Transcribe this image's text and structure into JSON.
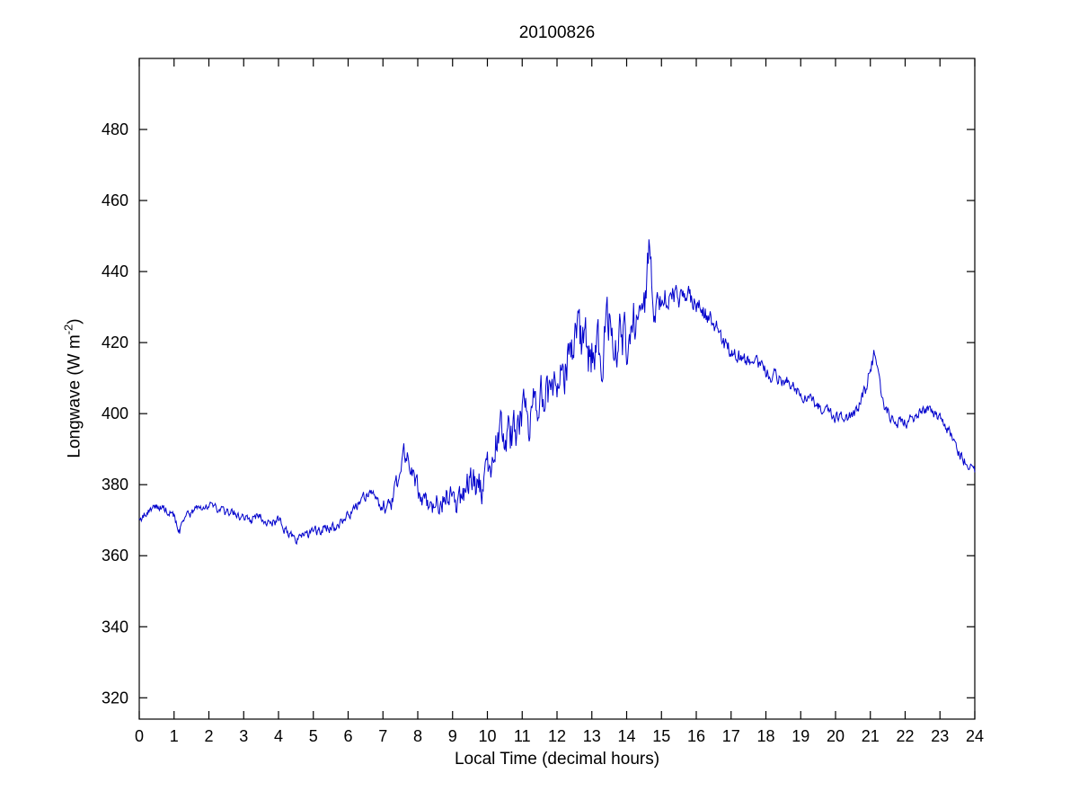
{
  "page": {
    "background": "#FFFFFF"
  },
  "chart_data": {
    "type": "line",
    "title": "20100826",
    "xlabel": "Local Time (decimal hours)",
    "ylabel": {
      "prefix": "Longwave (W m",
      "superscript": "-2",
      "suffix": ")"
    },
    "xlim": [
      0,
      24
    ],
    "ylim": [
      314,
      500
    ],
    "xticks": [
      0,
      1,
      2,
      3,
      4,
      5,
      6,
      7,
      8,
      9,
      10,
      11,
      12,
      13,
      14,
      15,
      16,
      17,
      18,
      19,
      20,
      21,
      22,
      23,
      24
    ],
    "yticks": [
      320,
      340,
      360,
      380,
      400,
      420,
      440,
      460,
      480
    ],
    "grid": false,
    "legend": "none",
    "line_color": "#0000CC",
    "axis_color": "#000000",
    "series": [
      {
        "name": "longwave",
        "noise_seed": 20100826,
        "sample_step_hours": 0.02,
        "keypoints": [
          [
            0,
            370
          ],
          [
            0.2,
            372
          ],
          [
            0.5,
            374
          ],
          [
            0.8,
            373
          ],
          [
            1.0,
            371
          ],
          [
            1.15,
            367
          ],
          [
            1.3,
            370
          ],
          [
            1.6,
            373
          ],
          [
            1.9,
            374
          ],
          [
            2.2,
            373
          ],
          [
            2.5,
            372
          ],
          [
            2.8,
            372
          ],
          [
            3.1,
            370
          ],
          [
            3.4,
            371
          ],
          [
            3.7,
            369
          ],
          [
            4.0,
            370
          ],
          [
            4.2,
            367
          ],
          [
            4.5,
            364
          ],
          [
            4.7,
            366
          ],
          [
            5.0,
            366
          ],
          [
            5.3,
            368
          ],
          [
            5.6,
            368
          ],
          [
            5.9,
            370
          ],
          [
            6.2,
            374
          ],
          [
            6.5,
            377
          ],
          [
            6.8,
            376
          ],
          [
            7.0,
            374
          ],
          [
            7.2,
            373
          ],
          [
            7.4,
            380
          ],
          [
            7.55,
            388
          ],
          [
            7.7,
            389
          ],
          [
            7.85,
            384
          ],
          [
            8.0,
            379
          ],
          [
            8.2,
            376
          ],
          [
            8.5,
            375
          ],
          [
            8.8,
            377
          ],
          [
            9.0,
            376
          ],
          [
            9.2,
            374
          ],
          [
            9.5,
            381
          ],
          [
            9.8,
            379
          ],
          [
            10.0,
            385
          ],
          [
            10.2,
            391
          ],
          [
            10.5,
            396
          ],
          [
            10.8,
            394
          ],
          [
            11.0,
            399
          ],
          [
            11.3,
            401
          ],
          [
            11.6,
            404
          ],
          [
            12.0,
            410
          ],
          [
            12.3,
            414
          ],
          [
            12.6,
            419
          ],
          [
            12.9,
            417
          ],
          [
            13.2,
            419
          ],
          [
            13.5,
            423
          ],
          [
            13.8,
            421
          ],
          [
            14.1,
            424
          ],
          [
            14.35,
            426
          ],
          [
            14.55,
            432
          ],
          [
            14.65,
            448
          ],
          [
            14.75,
            430
          ],
          [
            14.9,
            429
          ],
          [
            15.1,
            432
          ],
          [
            15.4,
            433
          ],
          [
            15.7,
            432
          ],
          [
            16.0,
            431
          ],
          [
            16.2,
            429
          ],
          [
            16.5,
            425
          ],
          [
            16.8,
            420
          ],
          [
            17.0,
            418
          ],
          [
            17.3,
            416
          ],
          [
            17.6,
            414
          ],
          [
            18.0,
            412
          ],
          [
            18.4,
            410
          ],
          [
            18.8,
            408
          ],
          [
            19.1,
            405
          ],
          [
            19.4,
            403
          ],
          [
            19.7,
            401
          ],
          [
            20.0,
            399
          ],
          [
            20.3,
            399
          ],
          [
            20.6,
            400
          ],
          [
            20.85,
            406
          ],
          [
            21.0,
            413
          ],
          [
            21.1,
            416
          ],
          [
            21.25,
            407
          ],
          [
            21.4,
            402
          ],
          [
            21.6,
            399
          ],
          [
            21.8,
            398
          ],
          [
            22.1,
            398
          ],
          [
            22.4,
            400
          ],
          [
            22.6,
            401
          ],
          [
            22.9,
            399
          ],
          [
            23.1,
            397
          ],
          [
            23.3,
            394
          ],
          [
            23.5,
            389
          ],
          [
            23.7,
            387
          ],
          [
            23.85,
            386
          ],
          [
            24,
            384
          ]
        ],
        "noise_envelope": [
          [
            0,
            1.2
          ],
          [
            6.5,
            1.5
          ],
          [
            7.3,
            2.5
          ],
          [
            8,
            3
          ],
          [
            9,
            4
          ],
          [
            9.5,
            5
          ],
          [
            10,
            5.5
          ],
          [
            11,
            6.5
          ],
          [
            12,
            7.5
          ],
          [
            13,
            8
          ],
          [
            14,
            8
          ],
          [
            14.5,
            7
          ],
          [
            14.8,
            5
          ],
          [
            15,
            4
          ],
          [
            15.5,
            3.5
          ],
          [
            16,
            3
          ],
          [
            16.5,
            2.5
          ],
          [
            17,
            2.5
          ],
          [
            18,
            2
          ],
          [
            19,
            1.8
          ],
          [
            20,
            1.5
          ],
          [
            20.8,
            2
          ],
          [
            21.2,
            2.5
          ],
          [
            21.6,
            1.8
          ],
          [
            22.5,
            1.5
          ],
          [
            23.2,
            1.8
          ],
          [
            24,
            1.5
          ]
        ]
      }
    ]
  }
}
